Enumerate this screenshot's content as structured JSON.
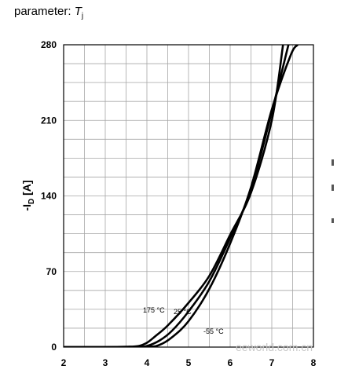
{
  "parameter_label": {
    "prefix": "parameter:",
    "symbol": "T",
    "subscript": "j"
  },
  "watermark": "eeworld.com.cn",
  "chart_data": {
    "type": "line",
    "xlabel": "",
    "ylabel": "-I_D [A]",
    "ylabel_main": "-I",
    "ylabel_sub": "D",
    "ylabel_unit": " [A]",
    "xlim": [
      2,
      8
    ],
    "ylim": [
      0,
      280
    ],
    "x_ticks": [
      2,
      3,
      4,
      5,
      6,
      7,
      8
    ],
    "y_ticks": [
      0,
      70,
      140,
      210,
      280
    ],
    "grid": true,
    "series": [
      {
        "name": "175 °C",
        "x": [
          2.0,
          3.0,
          3.5,
          3.8,
          4.0,
          4.2,
          4.5,
          5.0,
          5.5,
          6.0,
          6.5,
          7.0,
          7.27
        ],
        "y": [
          0,
          0,
          0.3,
          1,
          4,
          10,
          20,
          41,
          66,
          104,
          143,
          210,
          280
        ]
      },
      {
        "name": "25 °C",
        "x": [
          2.0,
          3.0,
          3.8,
          4.0,
          4.3,
          4.6,
          5.0,
          5.5,
          6.0,
          6.5,
          7.0,
          7.4
        ],
        "y": [
          0,
          0,
          0.3,
          1,
          6,
          15,
          33,
          61,
          101,
          146,
          218,
          280
        ]
      },
      {
        "name": "-55 °C",
        "x": [
          2.0,
          3.0,
          4.0,
          4.3,
          4.6,
          5.0,
          5.5,
          6.0,
          6.5,
          7.0,
          7.45,
          7.62
        ],
        "y": [
          0,
          0,
          0.3,
          2,
          9,
          24,
          54,
          96,
          148,
          220,
          270,
          280
        ]
      }
    ],
    "curve_labels": [
      "175 °C",
      "25 °C",
      "-55 °C"
    ]
  }
}
